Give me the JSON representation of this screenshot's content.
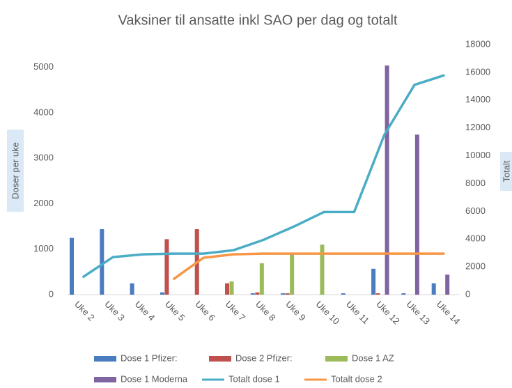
{
  "chart_data": {
    "type": "bar",
    "title": "Vaksiner til ansatte inkl SAO per dag og totalt",
    "y_label": "Doser per uke",
    "y2_label": "Totalt",
    "categories": [
      "Uke 2",
      "Uke 3",
      "Uke 4",
      "Uke 5",
      "Uke 6",
      "Uke 7",
      "Uke 8",
      "Uke 9",
      "Uke 10",
      "Uke 11",
      "Uke 12",
      "Uke 13",
      "Uke 14"
    ],
    "series": [
      {
        "name": "Dose 1 Pfizer:",
        "type": "bar",
        "color": "#4a7cc0",
        "values": [
          1250,
          1440,
          250,
          50,
          0,
          0,
          30,
          30,
          0,
          30,
          570,
          30,
          250
        ]
      },
      {
        "name": "Dose 2 Pfizer:",
        "type": "bar",
        "color": "#c0504d",
        "values": [
          0,
          0,
          0,
          1220,
          1440,
          250,
          50,
          30,
          0,
          0,
          30,
          0,
          0
        ]
      },
      {
        "name": "Dose 1 AZ",
        "type": "bar",
        "color": "#9bbb59",
        "values": [
          0,
          0,
          0,
          0,
          0,
          290,
          690,
          900,
          1100,
          0,
          0,
          0,
          0
        ]
      },
      {
        "name": "Dose 1 Moderna",
        "type": "bar",
        "color": "#8064a2",
        "values": [
          0,
          0,
          0,
          0,
          0,
          0,
          0,
          0,
          0,
          0,
          5040,
          3520,
          440
        ]
      },
      {
        "name": "Totalt dose 1",
        "type": "line",
        "axis": "y2",
        "color": "#4bacc6",
        "values": [
          1250,
          2700,
          2900,
          2950,
          2950,
          3200,
          3950,
          4900,
          5950,
          5950,
          11500,
          15100,
          15800
        ]
      },
      {
        "name": "Totalt dose 2",
        "type": "line",
        "axis": "y2",
        "color": "#f79646",
        "values": [
          null,
          null,
          null,
          1100,
          2650,
          2900,
          2950,
          2950,
          2950,
          2950,
          2950,
          2950,
          2950
        ]
      }
    ],
    "ylim": [
      0,
      5500
    ],
    "yticks": [
      0,
      1000,
      2000,
      3000,
      4000,
      5000
    ],
    "y2lim": [
      0,
      18000
    ],
    "y2ticks": [
      0,
      2000,
      4000,
      6000,
      8000,
      10000,
      12000,
      14000,
      16000,
      18000
    ]
  }
}
